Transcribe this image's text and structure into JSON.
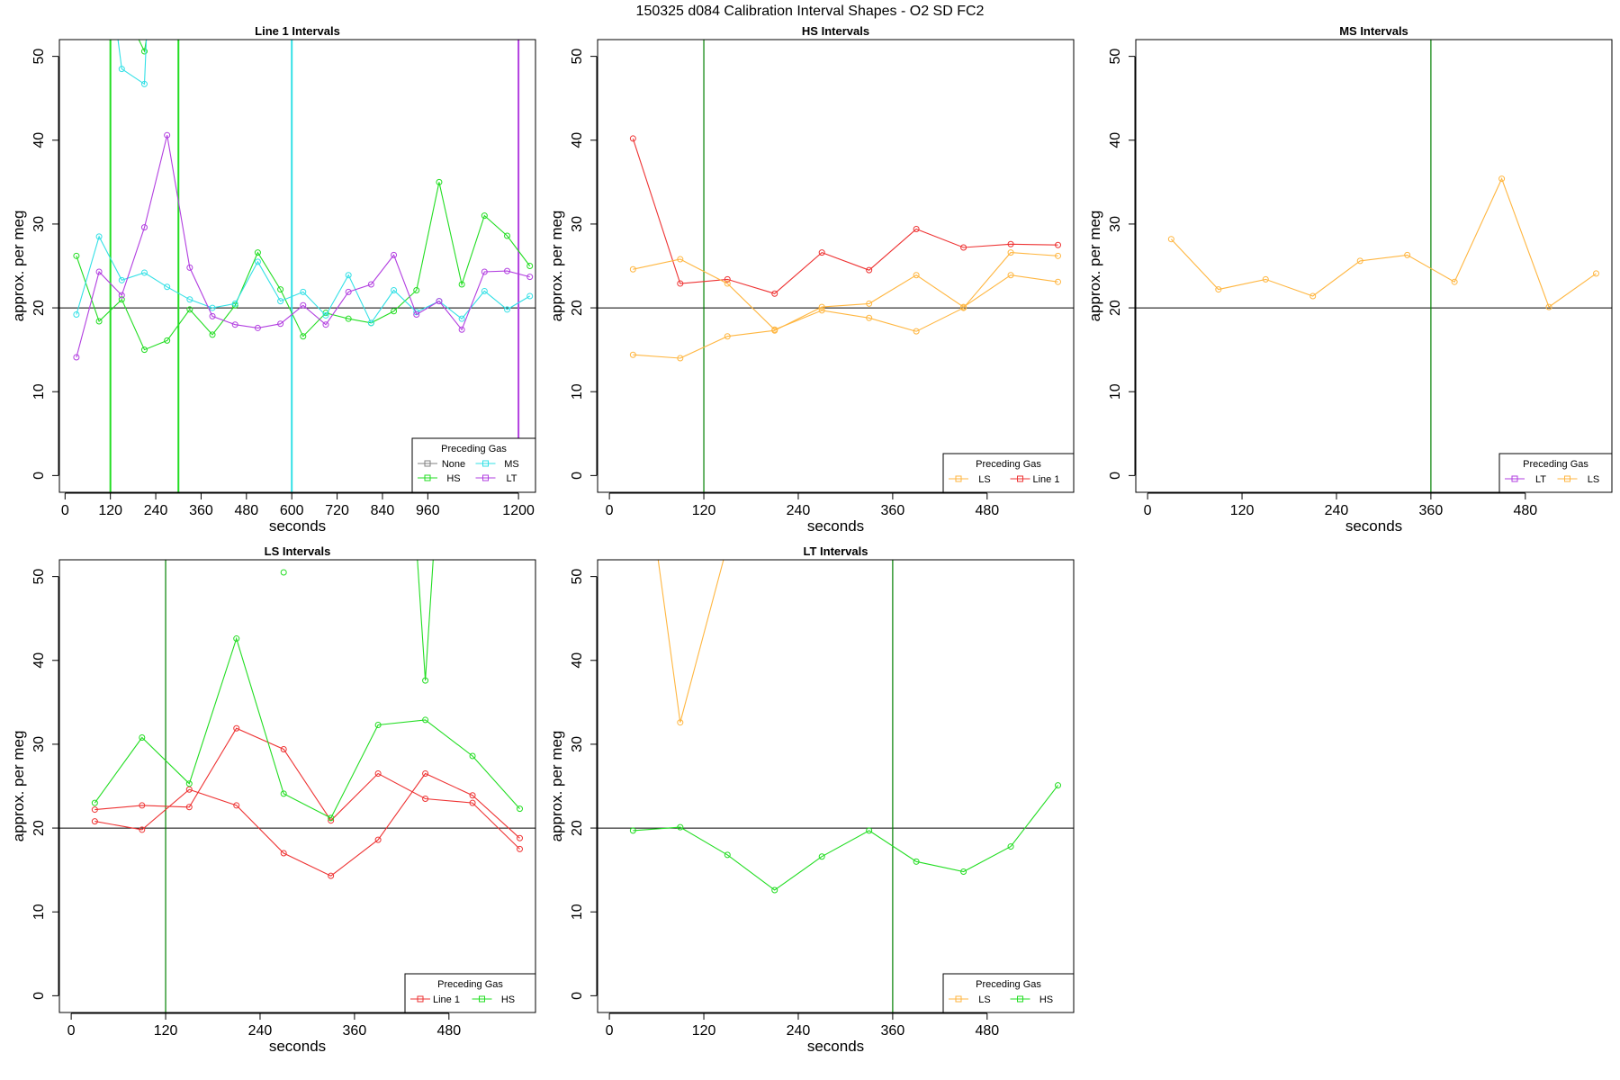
{
  "page_title": "150325   d084   Calibration Interval Shapes - O2 SD FC2",
  "colors": {
    "None": "#808080",
    "HS": "#22dd22",
    "MS": "#33e0e6",
    "LT": "#b23fe0",
    "LS": "#ffb640",
    "Line 1": "#ee3333",
    "vline_green": "#008000",
    "hline": "#000000"
  },
  "chart_data": [
    {
      "type": "line",
      "title": "Line 1 Intervals",
      "xlabel": "seconds",
      "ylabel": "approx. per meg",
      "xlim": [
        -15,
        1245
      ],
      "ylim": [
        -2,
        52
      ],
      "xticks": [
        0,
        120,
        240,
        360,
        480,
        600,
        720,
        840,
        960,
        1200
      ],
      "yticks": [
        0,
        10,
        20,
        30,
        40,
        50
      ],
      "hline": 20,
      "vlines": [
        {
          "x": 120,
          "color_key": "HS"
        },
        {
          "x": 300,
          "color_key": "HS"
        },
        {
          "x": 600,
          "color_key": "MS"
        },
        {
          "x": 1200,
          "color_key": "LT"
        }
      ],
      "legend": {
        "title": "Preceding Gas",
        "entries": [
          "None",
          "MS",
          "HS",
          "LT"
        ],
        "columns": 2,
        "location": "bottom-right"
      },
      "series": [
        {
          "name": "HS",
          "color_key": "HS",
          "x": [
            30,
            90,
            150,
            210,
            270,
            330,
            390,
            450,
            510,
            570,
            630,
            690,
            750,
            810,
            870,
            930,
            990,
            1050,
            1110,
            1170,
            1230
          ],
          "y": [
            26.2,
            18.4,
            21.0,
            15.0,
            16.1,
            19.8,
            16.8,
            20.3,
            26.6,
            22.2,
            16.6,
            19.4,
            18.7,
            18.2,
            19.6,
            22.1,
            35.0,
            22.8,
            31.0,
            28.6,
            25.0
          ]
        },
        {
          "name": "HS",
          "color_key": "HS",
          "x": [
            195,
            210,
            215
          ],
          "y": [
            52,
            50.6,
            52
          ]
        },
        {
          "name": "MS",
          "color_key": "MS",
          "x": [
            30,
            90,
            150,
            210,
            270,
            330,
            390,
            450,
            510,
            570,
            630,
            690,
            750,
            810,
            870,
            930,
            990,
            1050,
            1110,
            1170,
            1230
          ],
          "y": [
            19.2,
            28.5,
            23.3,
            24.2,
            22.5,
            21.0,
            20.0,
            20.5,
            25.5,
            20.8,
            21.9,
            19.1,
            23.9,
            18.2,
            22.1,
            19.5,
            20.8,
            18.7,
            22.0,
            19.8,
            21.4
          ]
        },
        {
          "name": "MS",
          "color_key": "MS",
          "x": [
            140,
            150,
            210,
            215
          ],
          "y": [
            52,
            48.5,
            46.7,
            52
          ]
        },
        {
          "name": "LT",
          "color_key": "LT",
          "x": [
            30,
            90,
            150,
            210,
            270,
            330,
            390,
            450,
            510,
            570,
            630,
            690,
            750,
            810,
            870,
            930,
            990,
            1050,
            1110,
            1170,
            1230
          ],
          "y": [
            14.1,
            24.3,
            21.5,
            29.6,
            40.6,
            24.8,
            19.0,
            18.0,
            17.6,
            18.1,
            20.3,
            18.0,
            21.9,
            22.8,
            26.3,
            19.2,
            20.8,
            17.4,
            24.3,
            24.4,
            23.7
          ]
        }
      ]
    },
    {
      "type": "line",
      "title": "HS Intervals",
      "xlabel": "seconds",
      "ylabel": "approx. per meg",
      "xlim": [
        -15,
        590
      ],
      "ylim": [
        -2,
        52
      ],
      "xticks": [
        0,
        120,
        240,
        360,
        480
      ],
      "yticks": [
        0,
        10,
        20,
        30,
        40,
        50
      ],
      "hline": 20,
      "vlines": [
        {
          "x": 120,
          "color_key": "vline_green"
        }
      ],
      "legend": {
        "title": "Preceding Gas",
        "entries": [
          "LS",
          "Line 1"
        ],
        "columns": 2,
        "location": "bottom-right"
      },
      "series": [
        {
          "name": "Line 1",
          "color_key": "Line 1",
          "x": [
            30,
            90,
            150,
            210,
            270,
            330,
            390,
            450,
            510,
            570
          ],
          "y": [
            40.2,
            22.9,
            23.4,
            21.7,
            26.6,
            24.5,
            29.4,
            27.2,
            27.6,
            27.5
          ]
        },
        {
          "name": "LS",
          "color_key": "LS",
          "x": [
            30,
            90,
            150,
            210,
            270,
            330,
            390,
            450,
            510,
            570
          ],
          "y": [
            24.6,
            25.8,
            22.9,
            17.4,
            19.7,
            18.8,
            17.2,
            20.0,
            26.6,
            26.2
          ]
        },
        {
          "name": "LS",
          "color_key": "LS",
          "x": [
            30,
            90,
            150,
            210,
            270,
            330,
            390,
            450,
            510,
            570
          ],
          "y": [
            14.4,
            14.0,
            16.6,
            17.3,
            20.1,
            20.5,
            23.9,
            20.1,
            23.9,
            23.1
          ]
        }
      ]
    },
    {
      "type": "line",
      "title": "MS Intervals",
      "xlabel": "seconds",
      "ylabel": "approx. per meg",
      "xlim": [
        -15,
        590
      ],
      "ylim": [
        -2,
        52
      ],
      "xticks": [
        0,
        120,
        240,
        360,
        480
      ],
      "yticks": [
        0,
        10,
        20,
        30,
        40,
        50
      ],
      "hline": 20,
      "vlines": [
        {
          "x": 360,
          "color_key": "vline_green"
        }
      ],
      "legend": {
        "title": "Preceding Gas",
        "entries": [
          "LT",
          "LS"
        ],
        "columns": 2,
        "location": "bottom-right"
      },
      "series": [
        {
          "name": "LS",
          "color_key": "LS",
          "x": [
            30,
            90,
            150,
            210,
            270,
            330,
            390,
            450,
            510,
            570
          ],
          "y": [
            28.2,
            22.2,
            23.4,
            21.4,
            25.6,
            26.3,
            23.1,
            35.4,
            20.1,
            24.1
          ]
        }
      ]
    },
    {
      "type": "line",
      "title": "LS Intervals",
      "xlabel": "seconds",
      "ylabel": "approx. per meg",
      "xlim": [
        -15,
        590
      ],
      "ylim": [
        -2,
        52
      ],
      "xticks": [
        0,
        120,
        240,
        360,
        480
      ],
      "yticks": [
        0,
        10,
        20,
        30,
        40,
        50
      ],
      "hline": 20,
      "vlines": [
        {
          "x": 120,
          "color_key": "vline_green"
        }
      ],
      "legend": {
        "title": "Preceding Gas",
        "entries": [
          "Line 1",
          "HS"
        ],
        "columns": 2,
        "location": "bottom-right"
      },
      "series": [
        {
          "name": "Line 1",
          "color_key": "Line 1",
          "x": [
            30,
            90,
            150,
            210,
            270,
            330,
            390,
            450,
            510,
            570
          ],
          "y": [
            22.2,
            22.7,
            22.5,
            31.9,
            29.4,
            20.9,
            26.5,
            23.5,
            23.0,
            17.5
          ]
        },
        {
          "name": "Line 1",
          "color_key": "Line 1",
          "x": [
            30,
            90,
            150,
            210,
            270,
            330,
            390,
            450,
            510,
            570
          ],
          "y": [
            20.8,
            19.8,
            24.6,
            22.7,
            17.0,
            14.3,
            18.6,
            26.5,
            23.9,
            18.8
          ]
        },
        {
          "name": "HS",
          "color_key": "HS",
          "x": [
            30,
            90,
            150,
            210,
            270,
            330,
            390,
            450,
            510,
            570
          ],
          "y": [
            23.0,
            30.8,
            25.3,
            42.6,
            24.1,
            21.2,
            32.3,
            32.9,
            28.6,
            22.3
          ]
        },
        {
          "name": "HS",
          "color_key": "HS",
          "x": [
            270
          ],
          "y": [
            50.5
          ]
        },
        {
          "name": "HS",
          "color_key": "HS",
          "x": [
            440,
            450,
            460
          ],
          "y": [
            52,
            37.6,
            52
          ]
        }
      ]
    },
    {
      "type": "line",
      "title": "LT Intervals",
      "xlabel": "seconds",
      "ylabel": "approx. per meg",
      "xlim": [
        -15,
        590
      ],
      "ylim": [
        -2,
        52
      ],
      "xticks": [
        0,
        120,
        240,
        360,
        480
      ],
      "yticks": [
        0,
        10,
        20,
        30,
        40,
        50
      ],
      "hline": 20,
      "vlines": [
        {
          "x": 360,
          "color_key": "vline_green"
        }
      ],
      "legend": {
        "title": "Preceding Gas",
        "entries": [
          "LS",
          "HS"
        ],
        "columns": 2,
        "location": "bottom-right"
      },
      "series": [
        {
          "name": "LS",
          "color_key": "LS",
          "x": [
            62,
            90,
            145
          ],
          "y": [
            52,
            32.6,
            52
          ]
        },
        {
          "name": "HS",
          "color_key": "HS",
          "x": [
            30,
            90,
            150,
            210,
            270,
            330,
            390,
            450,
            510,
            570
          ],
          "y": [
            19.7,
            20.1,
            16.8,
            12.6,
            16.6,
            19.7,
            16.0,
            14.8,
            17.8,
            25.1
          ]
        }
      ]
    }
  ]
}
